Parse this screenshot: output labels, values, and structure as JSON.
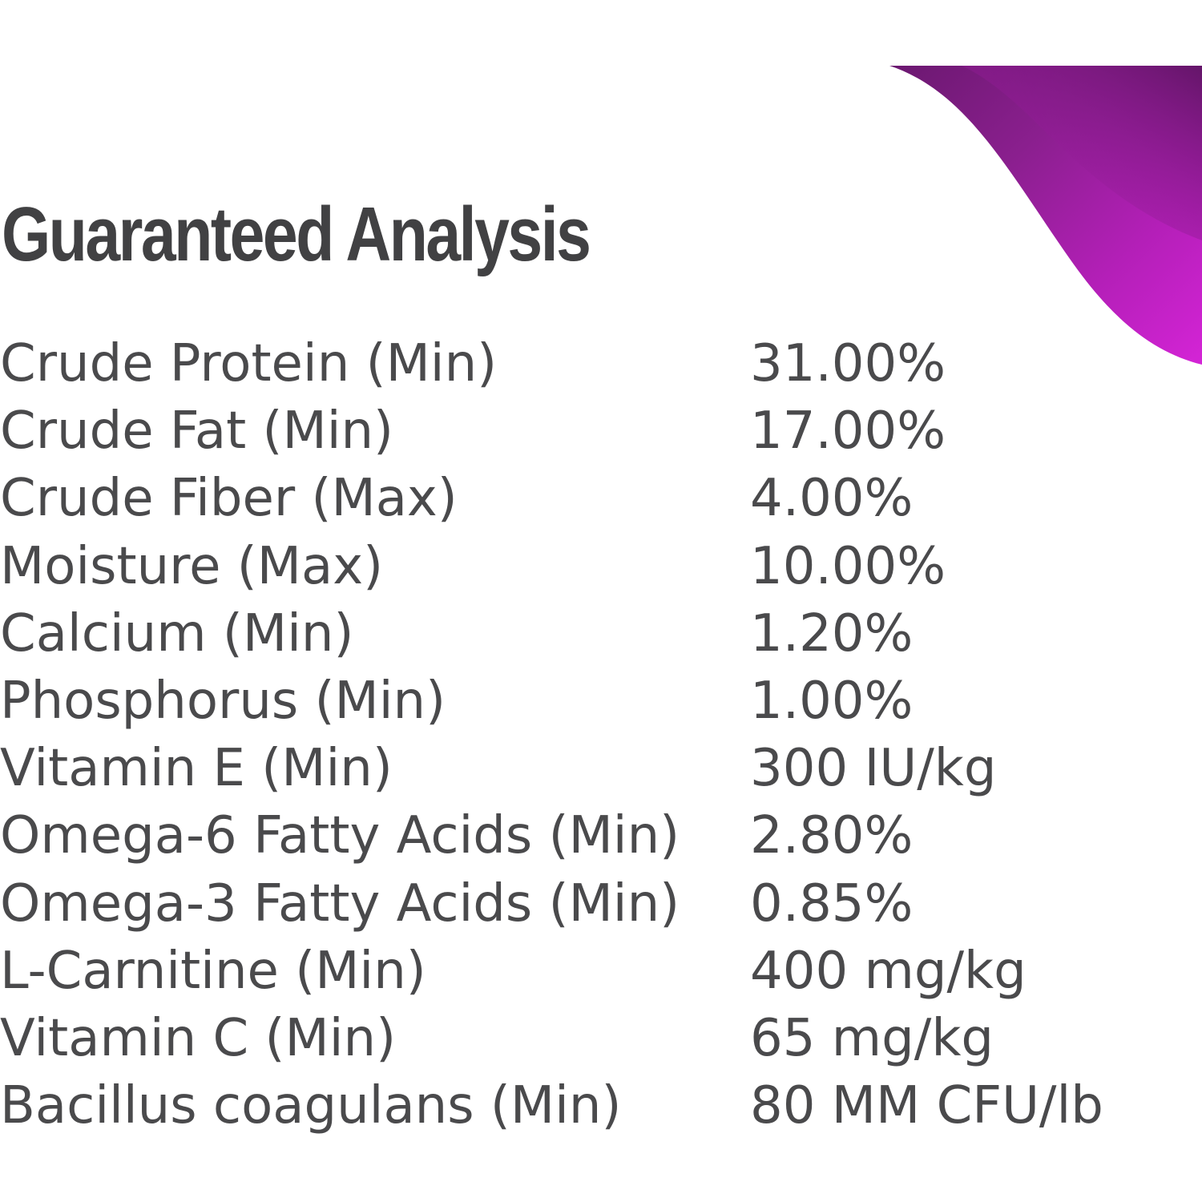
{
  "title": "Guaranteed Analysis",
  "accent_colors": [
    "#6b1870",
    "#8a1f8e",
    "#b41fb8",
    "#d424d6"
  ],
  "rows": [
    {
      "label": "Crude Protein (Min)",
      "value": "31.00%"
    },
    {
      "label": "Crude Fat (Min)",
      "value": "17.00%"
    },
    {
      "label": "Crude Fiber (Max)",
      "value": "4.00%"
    },
    {
      "label": "Moisture (Max)",
      "value": "10.00%"
    },
    {
      "label": "Calcium (Min)",
      "value": "1.20%"
    },
    {
      "label": "Phosphorus (Min)",
      "value": "1.00%"
    },
    {
      "label": "Vitamin E (Min)",
      "value": "300 IU/kg"
    },
    {
      "label": "Omega-6 Fatty Acids (Min)",
      "value": "2.80%"
    },
    {
      "label": "Omega-3 Fatty Acids (Min)",
      "value": "0.85%"
    },
    {
      "label": "L-Carnitine (Min)",
      "value": "400 mg/kg"
    },
    {
      "label": "Vitamin C (Min)",
      "value": "65 mg/kg"
    },
    {
      "label": "Bacillus coagulans (Min)",
      "value": "80 MM CFU/lb"
    }
  ]
}
